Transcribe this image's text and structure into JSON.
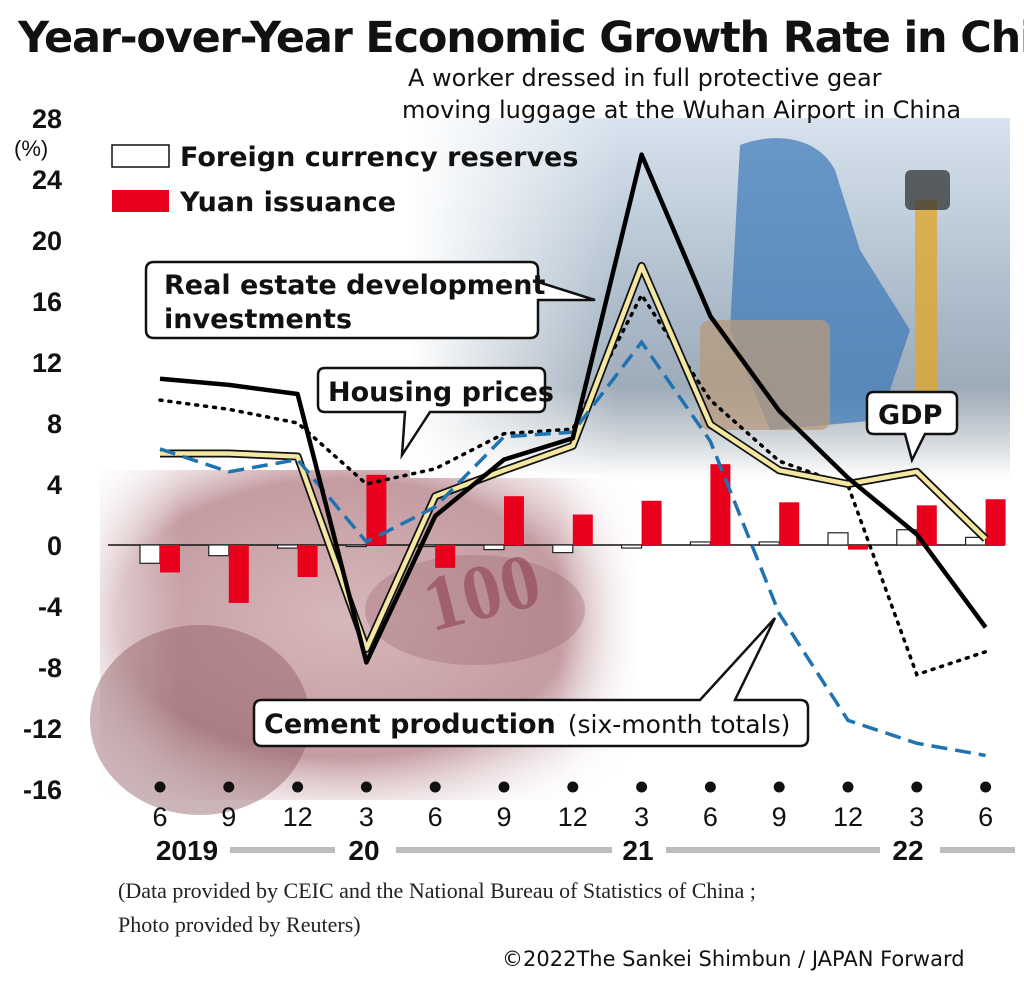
{
  "title": "Year-over-Year Economic Growth Rate in China",
  "photo_caption": {
    "line1": "A worker dressed in full protective gear",
    "line2": "moving luggage at the Wuhan Airport in China"
  },
  "source_line1": "(Data provided by CEIC and the National Bureau of Statistics of China ;",
  "source_line2": " Photo provided by Reuters)",
  "copyright": "©2022The Sankei Shimbun / JAPAN Forward",
  "colors": {
    "reserves_bar": "#ffffff",
    "yuan_bar": "#e8001c",
    "gdp": "#f3e7a2",
    "cement": "#1e73b0",
    "real_estate": "#000000",
    "housing": "#000000"
  },
  "chart_data": {
    "type": "bar",
    "unit": "(%)",
    "ylim": [
      -16,
      28
    ],
    "yticks": [
      28,
      24,
      20,
      16,
      12,
      8,
      4,
      0,
      -4,
      -8,
      -12,
      -16
    ],
    "categories": [
      "6",
      "9",
      "12",
      "3",
      "6",
      "9",
      "12",
      "3",
      "6",
      "9",
      "12",
      "3",
      "6"
    ],
    "years": [
      "2019",
      "20",
      "21",
      "22"
    ],
    "series": [
      {
        "name": "Foreign currency reserves",
        "kind": "bar",
        "values": [
          -1.2,
          -0.7,
          -0.2,
          -0.1,
          -0.1,
          -0.3,
          -0.5,
          -0.2,
          0.2,
          0.2,
          0.8,
          1.0,
          0.5
        ]
      },
      {
        "name": "Yuan issuance",
        "kind": "bar",
        "values": [
          -1.8,
          -3.8,
          -2.1,
          4.6,
          -1.5,
          3.2,
          2.0,
          2.9,
          5.3,
          2.8,
          -0.3,
          2.6,
          3.0
        ]
      },
      {
        "name": "Real estate development investments",
        "kind": "line",
        "values": [
          10.9,
          10.5,
          9.9,
          -7.7,
          1.9,
          5.6,
          7.0,
          25.6,
          15.0,
          8.8,
          4.4,
          0.7,
          -5.4
        ]
      },
      {
        "name": "Housing prices",
        "kind": "line",
        "values": [
          9.5,
          8.9,
          8.0,
          4.0,
          5.0,
          7.3,
          7.6,
          16.4,
          9.5,
          5.5,
          3.9,
          -8.5,
          -7.0
        ]
      },
      {
        "name": "GDP",
        "kind": "line",
        "values": [
          6.0,
          6.0,
          5.8,
          -6.8,
          3.2,
          4.9,
          6.5,
          18.3,
          7.9,
          4.9,
          4.0,
          4.8,
          0.4
        ]
      },
      {
        "name": "Cement production (six-month totals)",
        "kind": "line",
        "values": [
          6.3,
          4.8,
          5.6,
          0.2,
          2.5,
          7.1,
          7.4,
          13.3,
          6.8,
          -4.5,
          -11.5,
          -13.0,
          -13.8
        ]
      }
    ],
    "labels": {
      "real_estate": [
        "Real estate development",
        "investments"
      ],
      "housing": "Housing prices",
      "gdp": "GDP",
      "cement_bold": "Cement production",
      "cement_normal": "(six-month totals)"
    },
    "legend": [
      "Foreign currency reserves",
      "Yuan issuance"
    ],
    "legend_position": "top-left",
    "grid": false
  }
}
